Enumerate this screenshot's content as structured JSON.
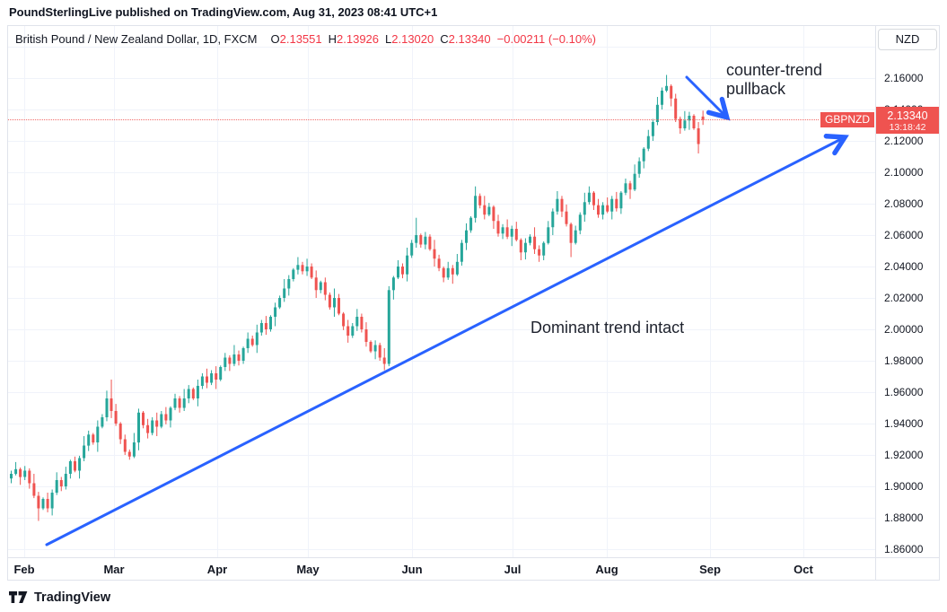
{
  "attribution": {
    "text": "PoundSterlingLive published on TradingView.com, Aug 31, 2023 08:41 UTC+1"
  },
  "header": {
    "symbol_title": "British Pound / New Zealand Dollar, 1D, FXCM",
    "ohlc": [
      {
        "label": "O",
        "value": "2.13551"
      },
      {
        "label": "H",
        "value": "2.13926"
      },
      {
        "label": "L",
        "value": "2.13020"
      },
      {
        "label": "C",
        "value": "2.13340"
      }
    ],
    "change": "−0.00211 (−0.10%)",
    "currency_button": "NZD"
  },
  "annotations": {
    "pullback": "counter-trend pullback",
    "trend": "Dominant trend intact"
  },
  "price_label": {
    "symbol": "GBPNZD",
    "price": "2.13340",
    "countdown": "13:18:42"
  },
  "watermark": "TradingView",
  "colors": {
    "up": "#26a69a",
    "down": "#ef5350",
    "accent_red": "#f23645",
    "arrow_blue": "#2962ff",
    "grid": "#f0f3fa",
    "border": "#e0e3eb",
    "text": "#131722"
  },
  "chart_data": {
    "type": "candlestick",
    "symbol": "GBPNZD",
    "description": "British Pound / New Zealand Dollar",
    "interval": "1D",
    "exchange": "FXCM",
    "last": {
      "open": 2.13551,
      "high": 2.13926,
      "low": 2.1302,
      "close": 2.1334,
      "change": -0.00211,
      "change_pct": -0.1
    },
    "x_labels": [
      "Feb",
      "Mar",
      "Apr",
      "May",
      "Jun",
      "Jul",
      "Aug",
      "Sep",
      "Oct"
    ],
    "y_ticks": [
      "2.16000",
      "2.14000",
      "2.12000",
      "2.10000",
      "2.08000",
      "2.06000",
      "2.04000",
      "2.02000",
      "2.00000",
      "1.98000",
      "1.96000",
      "1.94000",
      "1.92000",
      "1.90000",
      "1.88000",
      "1.86000"
    ],
    "ylim": [
      1.855,
      2.193
    ],
    "grid": true,
    "first_open": 1.905,
    "closes": [
      1.908,
      1.911,
      1.906,
      1.91,
      1.902,
      1.894,
      1.886,
      1.892,
      1.886,
      1.896,
      1.904,
      1.9,
      1.908,
      1.916,
      1.91,
      1.918,
      1.926,
      1.933,
      1.928,
      1.938,
      1.944,
      1.956,
      1.948,
      1.94,
      1.93,
      1.922,
      1.919,
      1.928,
      1.947,
      1.939,
      1.934,
      1.942,
      1.938,
      1.946,
      1.942,
      1.95,
      1.956,
      1.95,
      1.956,
      1.962,
      1.956,
      1.964,
      1.97,
      1.966,
      1.972,
      1.968,
      1.976,
      1.982,
      1.978,
      1.984,
      1.98,
      1.988,
      1.994,
      1.99,
      1.998,
      2.004,
      2.0,
      2.008,
      2.014,
      2.02,
      2.026,
      2.032,
      2.038,
      2.041,
      2.037,
      2.04,
      2.033,
      2.025,
      2.03,
      2.022,
      2.014,
      2.02,
      2.01,
      2.002,
      1.996,
      2.002,
      2.008,
      2.0,
      1.992,
      1.986,
      1.99,
      1.982,
      1.978,
      2.025,
      2.033,
      2.04,
      2.035,
      2.047,
      2.055,
      2.06,
      2.054,
      2.059,
      2.051,
      2.045,
      2.039,
      2.033,
      2.039,
      2.035,
      2.043,
      2.055,
      2.063,
      2.071,
      2.085,
      2.079,
      2.073,
      2.078,
      2.069,
      2.061,
      2.065,
      2.059,
      2.064,
      2.057,
      2.049,
      2.055,
      2.059,
      2.051,
      2.047,
      2.055,
      2.065,
      2.075,
      2.083,
      2.075,
      2.067,
      2.055,
      2.063,
      2.073,
      2.081,
      2.087,
      2.079,
      2.073,
      2.079,
      2.075,
      2.083,
      2.077,
      2.087,
      2.093,
      2.089,
      2.099,
      2.107,
      2.115,
      2.123,
      2.132,
      2.143,
      2.152,
      2.155,
      2.147,
      2.134,
      2.128,
      2.133,
      2.136,
      2.128,
      2.118,
      2.1334
    ],
    "wick_up": [
      0.002,
      0.0045,
      0.001,
      0.003,
      0.0015,
      0.006,
      0.0025,
      0.001,
      0.004,
      0.002,
      0.005
    ],
    "wick_down": [
      0.003,
      0.001,
      0.005,
      0.002,
      0.0035,
      0.0015,
      0.006,
      0.001,
      0.0025,
      0.0045,
      0.0015,
      0.003,
      0.002
    ],
    "overrides": {
      "6": {
        "l": 1.878
      },
      "22": {
        "h": 1.968
      },
      "26": {
        "l": 1.917
      },
      "63": {
        "h": 2.046
      },
      "82": {
        "l": 1.974
      },
      "89": {
        "h": 2.071
      },
      "95": {
        "l": 2.03
      },
      "102": {
        "h": 2.091
      },
      "112": {
        "l": 2.044
      },
      "116": {
        "l": 2.043
      },
      "123": {
        "l": 2.046
      },
      "127": {
        "h": 2.091
      },
      "144": {
        "h": 2.162
      },
      "151": {
        "l": 2.112
      },
      "152": {
        "o": 2.13551,
        "h": 2.13926,
        "l": 2.1302,
        "c": 2.1334
      }
    },
    "trendline": {
      "from_price": 1.863,
      "to_price": 2.123,
      "label": "Dominant trend intact"
    },
    "pullback_arrow": {
      "label": "counter-trend pullback"
    },
    "last_price_line": 2.1334
  }
}
